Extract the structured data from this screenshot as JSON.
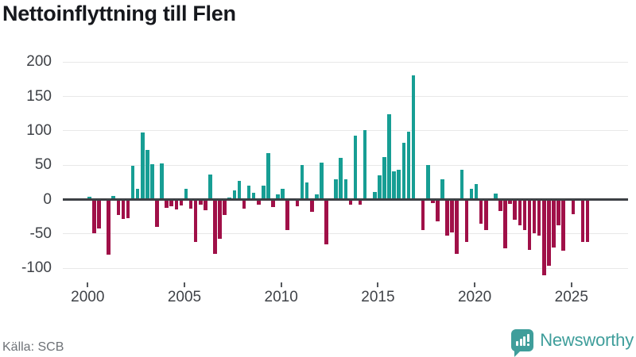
{
  "header": {
    "title": "Nettoinflyttning till Flen"
  },
  "footer": {
    "source": "Källa: SCB",
    "brand": "Newsworthy"
  },
  "colors": {
    "positive": "#179e94",
    "negative": "#a01048",
    "brand_teal": "#3f9e9b",
    "grid": "#e8e8e8",
    "zero_line": "#3d4045",
    "axis_text": "#3f4247",
    "source_text": "#6e7277"
  },
  "chart_data": {
    "type": "bar",
    "title": "Nettoinflyttning till Flen",
    "x_period": "quarterly",
    "x_range": "2000Q1–2025Q4",
    "xlabel": "",
    "ylabel": "",
    "xticks": [
      "2000",
      "2005",
      "2010",
      "2015",
      "2020",
      "2025"
    ],
    "yticks": [
      200,
      150,
      100,
      50,
      0,
      -50,
      -100
    ],
    "ylim": [
      -115,
      210
    ],
    "grid": "horizontal",
    "legend": "none",
    "series": [
      {
        "name": "Nettoinflyttning",
        "values": [
          4,
          -49,
          -42,
          0,
          -80,
          5,
          -23,
          -28,
          -27,
          49,
          16,
          98,
          72,
          51,
          -40,
          52,
          -12,
          -10,
          -14,
          -9,
          16,
          -13,
          -62,
          -8,
          -16,
          36,
          -79,
          -57,
          -23,
          3,
          13,
          27,
          -13,
          20,
          10,
          -7,
          20,
          68,
          -11,
          8,
          16,
          -44,
          0,
          -10,
          50,
          25,
          -18,
          7,
          54,
          -65,
          0,
          30,
          61,
          30,
          -7,
          93,
          -7,
          101,
          0,
          11,
          35,
          62,
          124,
          41,
          43,
          83,
          99,
          181,
          0,
          -45,
          50,
          -5,
          -32,
          30,
          -53,
          -48,
          -79,
          43,
          -62,
          16,
          23,
          -35,
          -44,
          0,
          9,
          -17,
          -71,
          -6,
          -29,
          -37,
          -45,
          -73,
          -49,
          -52,
          -110,
          -96,
          -70,
          -38,
          -75,
          0,
          -21,
          0,
          -62,
          -62
        ]
      }
    ]
  }
}
